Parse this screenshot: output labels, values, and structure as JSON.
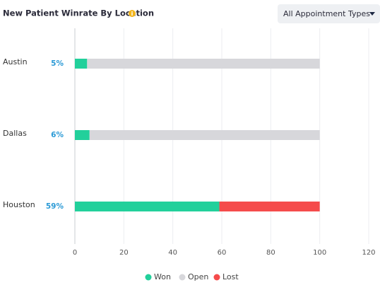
{
  "chart_data": {
    "type": "hbar-stacked",
    "title": "New Patient Winrate By Location",
    "filter": "All Appointment Types",
    "categories": [
      "Austin",
      "Dallas",
      "Houston"
    ],
    "series": [
      {
        "name": "Won",
        "color": "#22d09b",
        "values": [
          5,
          6,
          59
        ],
        "value_labels": [
          "5%",
          "6%",
          "59%"
        ]
      },
      {
        "name": "Open",
        "color": "#d7d7db",
        "values": [
          95,
          94,
          0
        ]
      },
      {
        "name": "Lost",
        "color": "#f54b4b",
        "values": [
          0,
          0,
          41
        ]
      }
    ],
    "xlim": [
      0,
      120
    ],
    "xticks": [
      0,
      20,
      40,
      60,
      80,
      100,
      120
    ],
    "grid": true,
    "legend": "bottom"
  }
}
